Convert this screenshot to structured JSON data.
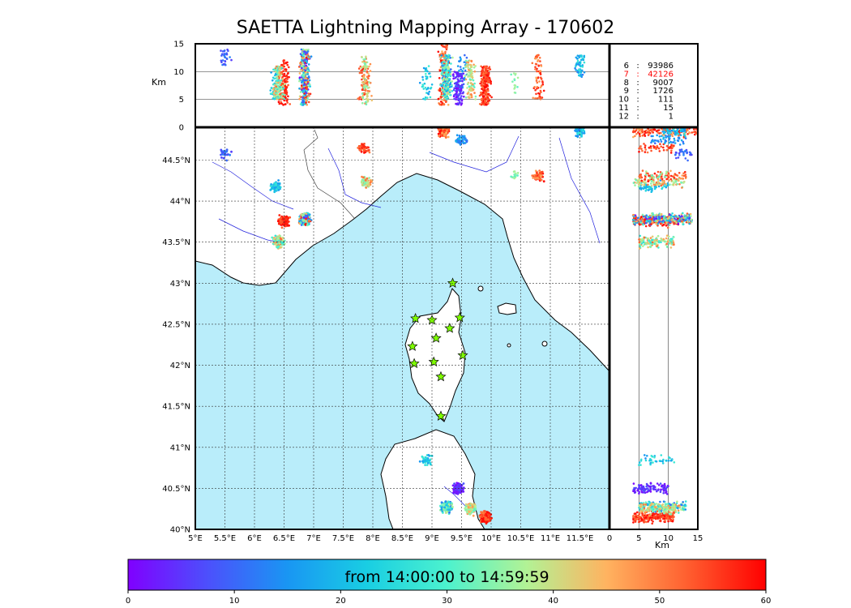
{
  "chart_data": {
    "type": "scatter",
    "title": "SAETTA Lightning Mapping Array - 170602",
    "map": {
      "lon_range": [
        5,
        12
      ],
      "lat_range": [
        40,
        44.9
      ],
      "lon_ticks": [
        "5°E",
        "5.5°E",
        "6°E",
        "6.5°E",
        "7°E",
        "7.5°E",
        "8°E",
        "8.5°E",
        "9°E",
        "9.5°E",
        "10°E",
        "10.5°E",
        "11°E",
        "11.5°E"
      ],
      "lat_ticks": [
        "40°N",
        "40.5°N",
        "41°N",
        "41.5°N",
        "42°N",
        "42.5°N",
        "43°N",
        "43.5°N",
        "44°N",
        "44.5°N"
      ],
      "grid": true,
      "sea_color": "#b9edfa"
    },
    "height_panel": {
      "ylabel": "Km",
      "yticks": [
        "0",
        "5",
        "10",
        "15"
      ],
      "ylim": [
        0,
        15
      ]
    },
    "lat_height_panel": {
      "xlabel": "Km",
      "xticks": [
        "0",
        "5",
        "10",
        "15"
      ],
      "xlim": [
        0,
        15
      ]
    },
    "station_counts": [
      {
        "stations": "6",
        "count": "93986",
        "highlight": false
      },
      {
        "stations": "7",
        "count": "42126",
        "highlight": true
      },
      {
        "stations": "8",
        "count": "9007",
        "highlight": false
      },
      {
        "stations": "9",
        "count": "1726",
        "highlight": false
      },
      {
        "stations": "10",
        "count": "111",
        "highlight": false
      },
      {
        "stations": "11",
        "count": "15",
        "highlight": false
      },
      {
        "stations": "12",
        "count": "1",
        "highlight": false
      }
    ],
    "stations": [
      {
        "lon": 9.35,
        "lat": 43.0
      },
      {
        "lon": 8.72,
        "lat": 42.57
      },
      {
        "lon": 9.0,
        "lat": 42.55
      },
      {
        "lon": 9.47,
        "lat": 42.58
      },
      {
        "lon": 9.3,
        "lat": 42.45
      },
      {
        "lon": 9.07,
        "lat": 42.33
      },
      {
        "lon": 8.67,
        "lat": 42.23
      },
      {
        "lon": 9.52,
        "lat": 42.12
      },
      {
        "lon": 8.7,
        "lat": 42.02
      },
      {
        "lon": 9.03,
        "lat": 42.04
      },
      {
        "lon": 9.15,
        "lat": 41.86
      },
      {
        "lon": 9.15,
        "lat": 41.38
      }
    ],
    "clusters": [
      {
        "lon": 5.5,
        "lat": 44.58,
        "alt": [
          11,
          14
        ],
        "time": [
          5,
          14
        ],
        "n": 30
      },
      {
        "lon": 6.35,
        "lat": 44.18,
        "alt": [
          5,
          10
        ],
        "time": [
          14,
          28
        ],
        "n": 60
      },
      {
        "lon": 6.5,
        "lat": 43.75,
        "alt": [
          4,
          12
        ],
        "time": [
          52,
          60
        ],
        "n": 120
      },
      {
        "lon": 6.85,
        "lat": 43.78,
        "alt": [
          4,
          14
        ],
        "time": [
          0,
          60
        ],
        "n": 360
      },
      {
        "lon": 6.4,
        "lat": 43.5,
        "alt": [
          5,
          11
        ],
        "time": [
          25,
          52
        ],
        "n": 140
      },
      {
        "lon": 7.85,
        "lat": 44.65,
        "alt": [
          5,
          11
        ],
        "time": [
          50,
          60
        ],
        "n": 50
      },
      {
        "lon": 7.88,
        "lat": 44.23,
        "alt": [
          4,
          13
        ],
        "time": [
          32,
          52
        ],
        "n": 90
      },
      {
        "lon": 9.2,
        "lat": 44.85,
        "alt": [
          4,
          15
        ],
        "time": [
          45,
          60
        ],
        "n": 160
      },
      {
        "lon": 9.5,
        "lat": 44.75,
        "alt": [
          7,
          13
        ],
        "time": [
          10,
          20
        ],
        "n": 45
      },
      {
        "lon": 10.8,
        "lat": 44.3,
        "alt": [
          5,
          13
        ],
        "time": [
          46,
          60
        ],
        "n": 70
      },
      {
        "lon": 10.4,
        "lat": 44.3,
        "alt": [
          6,
          10
        ],
        "time": [
          30,
          38
        ],
        "n": 15
      },
      {
        "lon": 11.5,
        "lat": 44.85,
        "alt": [
          9,
          13
        ],
        "time": [
          10,
          28
        ],
        "n": 60
      },
      {
        "lon": 8.9,
        "lat": 40.85,
        "alt": [
          5,
          11
        ],
        "time": [
          14,
          32
        ],
        "n": 40
      },
      {
        "lon": 9.45,
        "lat": 40.5,
        "alt": [
          4,
          10
        ],
        "time": [
          0,
          8
        ],
        "n": 110
      },
      {
        "lon": 9.25,
        "lat": 40.27,
        "alt": [
          5,
          13
        ],
        "time": [
          10,
          40
        ],
        "n": 200
      },
      {
        "lon": 9.9,
        "lat": 40.15,
        "alt": [
          4,
          11
        ],
        "time": [
          50,
          60
        ],
        "n": 220
      },
      {
        "lon": 9.65,
        "lat": 40.25,
        "alt": [
          5,
          12
        ],
        "time": [
          30,
          50
        ],
        "n": 100
      }
    ],
    "colorbar": {
      "label": "from 14:00:00 to 14:59:59",
      "ticks": [
        "0",
        "10",
        "20",
        "30",
        "40",
        "50",
        "60"
      ],
      "range": [
        0,
        60
      ],
      "colormap": "rainbow"
    }
  }
}
